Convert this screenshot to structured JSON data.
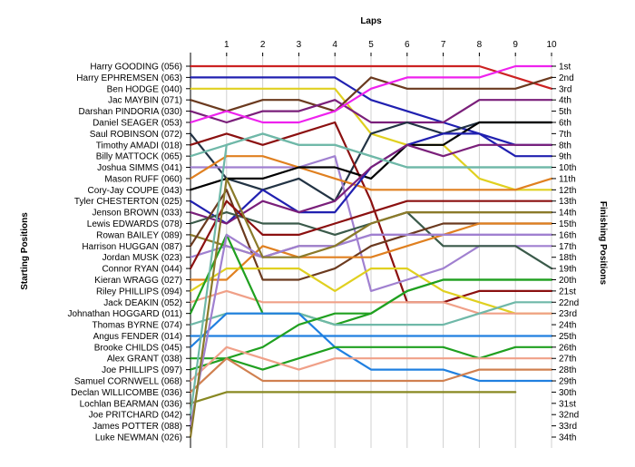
{
  "chart_data": {
    "type": "line",
    "title": "",
    "xlabel": "Laps",
    "left_axis_label": "Starting Positions",
    "right_axis_label": "Finishing Positions",
    "x": [
      0,
      1,
      2,
      3,
      4,
      5,
      6,
      7,
      8,
      9,
      10
    ],
    "x_tick_labels": [
      "1",
      "2",
      "3",
      "4",
      "5",
      "6",
      "7",
      "8",
      "9",
      "10"
    ],
    "finishing_labels": [
      "1st",
      "2nd",
      "3rd",
      "4th",
      "5th",
      "6th",
      "7th",
      "8th",
      "9th",
      "10th",
      "11th",
      "12th",
      "13th",
      "14th",
      "15th",
      "16th",
      "17th",
      "18th",
      "19th",
      "20th",
      "21st",
      "22nd",
      "23rd",
      "24th",
      "25th",
      "26th",
      "27th",
      "28th",
      "29th",
      "30th",
      "31st",
      "32nd",
      "33rd",
      "34th"
    ],
    "y_range": [
      1,
      34
    ],
    "grid": "vertical",
    "series": [
      {
        "name": "Harry GOODING (056)",
        "color": "#cc2222",
        "positions": [
          1,
          1,
          1,
          1,
          1,
          1,
          1,
          1,
          1,
          2,
          3
        ]
      },
      {
        "name": "Harry EPHREMSEN (063)",
        "color": "#2020b0",
        "positions": [
          2,
          2,
          2,
          2,
          2,
          4,
          5,
          6,
          7,
          9,
          9
        ]
      },
      {
        "name": "Ben HODGE (040)",
        "color": "#e0d020",
        "positions": [
          3,
          3,
          3,
          3,
          3,
          7,
          8,
          8,
          11,
          12,
          12
        ]
      },
      {
        "name": "Jac MAYBIN (071)",
        "color": "#6b3a1f",
        "positions": [
          4,
          5,
          4,
          4,
          5,
          2,
          3,
          3,
          3,
          3,
          2
        ]
      },
      {
        "name": "Darshan PINDORIA (030)",
        "color": "#7a1f7a",
        "positions": [
          5,
          6,
          5,
          5,
          4,
          6,
          6,
          6,
          4,
          4,
          4
        ]
      },
      {
        "name": "Daniel SEAGER (053)",
        "color": "#ee22ee",
        "positions": [
          6,
          5,
          6,
          6,
          5,
          3,
          2,
          2,
          2,
          1,
          1
        ]
      },
      {
        "name": "Saul ROBINSON (072)",
        "color": "#223344",
        "positions": [
          7,
          11,
          12,
          11,
          13,
          7,
          6,
          7,
          6,
          6,
          6
        ]
      },
      {
        "name": "Timothy AMADI (018)",
        "color": "#8b1010",
        "positions": [
          8,
          7,
          8,
          7,
          6,
          13,
          22,
          22,
          21,
          21,
          21
        ]
      },
      {
        "name": "Billy MATTOCK (065)",
        "color": "#6fb8a8",
        "positions": [
          9,
          8,
          7,
          8,
          8,
          9,
          10,
          10,
          10,
          10,
          10
        ]
      },
      {
        "name": "Joshua SIMMS (041)",
        "color": "#a080d0",
        "positions": [
          10,
          10,
          10,
          10,
          9,
          21,
          20,
          19,
          17,
          17,
          17
        ]
      },
      {
        "name": "Mason RUFF (060)",
        "color": "#e08020",
        "positions": [
          11,
          9,
          9,
          10,
          11,
          12,
          12,
          12,
          12,
          12,
          11
        ]
      },
      {
        "name": "Cory-Jay COUPE (043)",
        "color": "#000000",
        "positions": [
          12,
          11,
          11,
          10,
          10,
          11,
          8,
          8,
          6,
          6,
          6
        ]
      },
      {
        "name": "Tyler CHESTERTON (025)",
        "color": "#2020b0",
        "positions": [
          13,
          15,
          12,
          14,
          14,
          10,
          8,
          7,
          7,
          8,
          8
        ]
      },
      {
        "name": "Jenson BROWN (033)",
        "color": "#7a1f7a",
        "positions": [
          14,
          15,
          13,
          14,
          13,
          10,
          8,
          9,
          8,
          8,
          8
        ]
      },
      {
        "name": "Lewis EDWARDS (078)",
        "color": "#3a5a4a",
        "positions": [
          15,
          14,
          15,
          15,
          16,
          15,
          14,
          17,
          17,
          17,
          19
        ]
      },
      {
        "name": "Rowan BAILEY (089)",
        "color": "#8a7a2a",
        "positions": [
          16,
          17,
          18,
          17,
          17,
          15,
          14,
          14,
          14,
          14,
          14
        ]
      },
      {
        "name": "Harrison HUGGAN (087)",
        "color": "#6b3a1f",
        "positions": [
          17,
          12,
          20,
          20,
          19,
          17,
          16,
          15,
          15,
          15,
          15
        ]
      },
      {
        "name": "Jordan MUSK (023)",
        "color": "#a080d0",
        "positions": [
          18,
          17,
          18,
          17,
          17,
          16,
          16,
          16,
          16,
          16,
          16
        ]
      },
      {
        "name": "Connor RYAN (044)",
        "color": "#8b1010",
        "positions": [
          19,
          13,
          16,
          16,
          15,
          14,
          13,
          13,
          13,
          13,
          13
        ]
      },
      {
        "name": "Kieran WRAGG (027)",
        "color": "#e08020",
        "positions": [
          20,
          20,
          17,
          18,
          18,
          18,
          17,
          16,
          15,
          15,
          15
        ]
      },
      {
        "name": "Riley PHILLIPS (094)",
        "color": "#e0d020",
        "positions": [
          21,
          19,
          19,
          19,
          21,
          19,
          19,
          21,
          22,
          23,
          23
        ]
      },
      {
        "name": "Jack DEAKIN (052)",
        "color": "#f0a088",
        "positions": [
          22,
          21,
          22,
          22,
          22,
          22,
          22,
          22,
          23,
          23,
          23
        ]
      },
      {
        "name": "Johnathan HOGGARD (011)",
        "color": "#20a020",
        "positions": [
          23,
          16,
          23,
          23,
          24,
          23,
          21,
          20,
          20,
          20,
          20
        ]
      },
      {
        "name": "Thomas BYRNE (074)",
        "color": "#6fb8a8",
        "positions": [
          24,
          23,
          23,
          23,
          24,
          24,
          24,
          24,
          23,
          22,
          22
        ]
      },
      {
        "name": "Angus FENDER (014)",
        "color": "#2080e0",
        "positions": [
          25,
          25,
          25,
          25,
          25,
          25,
          25,
          25,
          25,
          25,
          25
        ]
      },
      {
        "name": "Brooke CHILDS (045)",
        "color": "#2080e0",
        "positions": [
          26,
          23,
          23,
          23,
          26,
          28,
          28,
          28,
          29,
          29,
          29
        ]
      },
      {
        "name": "Alex GRANT (038)",
        "color": "#20a020",
        "positions": [
          27,
          27,
          26,
          24,
          23,
          23,
          21,
          20,
          20,
          20,
          20
        ]
      },
      {
        "name": "Joe PHILLIPS (097)",
        "color": "#20a020",
        "positions": [
          28,
          27,
          28,
          27,
          26,
          26,
          26,
          26,
          27,
          26,
          26
        ]
      },
      {
        "name": "Samuel CORNWELL (068)",
        "color": "#f0a088",
        "positions": [
          29,
          26,
          27,
          28,
          27,
          27,
          27,
          27,
          27,
          27,
          27
        ]
      },
      {
        "name": "Declan WILLICOMBE (036)",
        "color": "#d08050",
        "positions": [
          30,
          27,
          29,
          29,
          29,
          29,
          29,
          29,
          28,
          28,
          28
        ]
      },
      {
        "name": "Lochlan BEARMAN (036)",
        "color": "#888822",
        "positions": [
          31,
          30,
          30,
          30,
          30,
          30,
          30,
          30,
          30,
          30,
          null
        ]
      },
      {
        "name": "Joe PRITCHARD (042)",
        "color": "#6fb8a8",
        "positions": [
          32,
          8,
          7,
          8,
          8,
          9,
          10,
          10,
          10,
          10,
          10
        ]
      },
      {
        "name": "James POTTER (088)",
        "color": "#a080d0",
        "positions": [
          33,
          16,
          18,
          17,
          17,
          16,
          16,
          16,
          16,
          16,
          16
        ]
      },
      {
        "name": "Luke NEWMAN (026)",
        "color": "#8a7a2a",
        "positions": [
          34,
          11,
          18,
          18,
          17,
          15,
          14,
          14,
          14,
          14,
          14
        ]
      }
    ]
  }
}
